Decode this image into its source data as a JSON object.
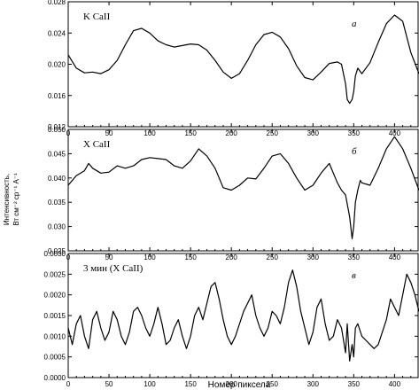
{
  "figure": {
    "ylabel": "Интенсивность,",
    "ylabel_units": "Вт см⁻² ср⁻¹ А⁻¹",
    "xlabel": "Номер пиксела"
  },
  "chart_data": [
    {
      "type": "line",
      "title": "K CaII",
      "panel_label": "а",
      "xlim": [
        0,
        430
      ],
      "ylim": [
        0.012,
        0.028
      ],
      "xticks": [
        "0",
        "50",
        "100",
        "150",
        "200",
        "250",
        "300",
        "350",
        "400"
      ],
      "yticks": [
        "0.012",
        "0.016",
        "0.020",
        "0.024",
        "0.028"
      ],
      "x": [
        0,
        10,
        20,
        30,
        40,
        50,
        60,
        70,
        80,
        90,
        100,
        110,
        120,
        130,
        140,
        150,
        160,
        170,
        180,
        190,
        200,
        210,
        220,
        230,
        240,
        250,
        260,
        270,
        280,
        290,
        300,
        310,
        320,
        330,
        335,
        340,
        342,
        345,
        348,
        350,
        352,
        355,
        360,
        370,
        380,
        390,
        400,
        410,
        420,
        430
      ],
      "values": [
        0.0212,
        0.0195,
        0.0189,
        0.019,
        0.0188,
        0.0193,
        0.0205,
        0.0225,
        0.0243,
        0.0246,
        0.024,
        0.023,
        0.0225,
        0.0222,
        0.0224,
        0.0226,
        0.0225,
        0.0218,
        0.0205,
        0.019,
        0.0182,
        0.0188,
        0.0205,
        0.0225,
        0.0238,
        0.0241,
        0.0235,
        0.022,
        0.0198,
        0.0183,
        0.018,
        0.019,
        0.0201,
        0.0203,
        0.02,
        0.0175,
        0.0155,
        0.015,
        0.0155,
        0.0165,
        0.0185,
        0.0195,
        0.0188,
        0.0202,
        0.0228,
        0.0252,
        0.0263,
        0.0255,
        0.0215,
        0.0188
      ]
    },
    {
      "type": "line",
      "title": "X CaII",
      "panel_label": "б",
      "xlim": [
        0,
        430
      ],
      "ylim": [
        0.025,
        0.05
      ],
      "xticks": [
        "0",
        "50",
        "100",
        "150",
        "200",
        "250",
        "300",
        "350",
        "400"
      ],
      "yticks": [
        "0.025",
        "0.030",
        "0.035",
        "0.040",
        "0.045",
        "0.050"
      ],
      "x": [
        0,
        10,
        20,
        25,
        30,
        40,
        50,
        60,
        70,
        80,
        90,
        100,
        110,
        120,
        130,
        140,
        150,
        160,
        170,
        180,
        190,
        200,
        210,
        220,
        230,
        240,
        250,
        260,
        270,
        280,
        290,
        300,
        310,
        320,
        330,
        335,
        340,
        345,
        348,
        350,
        352,
        355,
        358,
        360,
        370,
        380,
        390,
        400,
        410,
        420,
        430
      ],
      "values": [
        0.0385,
        0.0405,
        0.0415,
        0.043,
        0.042,
        0.041,
        0.0412,
        0.0425,
        0.042,
        0.0425,
        0.0438,
        0.0442,
        0.044,
        0.0438,
        0.0425,
        0.042,
        0.0435,
        0.046,
        0.0445,
        0.042,
        0.038,
        0.0375,
        0.0385,
        0.04,
        0.0398,
        0.042,
        0.0445,
        0.045,
        0.043,
        0.04,
        0.0375,
        0.0385,
        0.041,
        0.043,
        0.039,
        0.0375,
        0.0365,
        0.032,
        0.0275,
        0.03,
        0.035,
        0.0375,
        0.0395,
        0.039,
        0.0385,
        0.042,
        0.046,
        0.0485,
        0.046,
        0.042,
        0.0375
      ]
    },
    {
      "type": "line",
      "title": "3 мин (X CaII)",
      "panel_label": "в",
      "xlim": [
        0,
        430
      ],
      "ylim": [
        0.0,
        0.003
      ],
      "xticks": [
        "0",
        "50",
        "100",
        "150",
        "200",
        "250",
        "300",
        "350",
        "400"
      ],
      "yticks": [
        "0.0000",
        "0.0005",
        "0.0010",
        "0.0015",
        "0.0020",
        "0.0025",
        "0.0030"
      ],
      "x": [
        0,
        5,
        10,
        15,
        20,
        25,
        30,
        35,
        40,
        45,
        50,
        55,
        60,
        65,
        70,
        75,
        80,
        85,
        90,
        95,
        100,
        105,
        110,
        115,
        120,
        125,
        130,
        135,
        140,
        145,
        150,
        155,
        160,
        165,
        170,
        175,
        180,
        185,
        190,
        195,
        200,
        205,
        210,
        215,
        220,
        225,
        230,
        235,
        240,
        245,
        250,
        255,
        260,
        265,
        270,
        275,
        280,
        285,
        290,
        295,
        300,
        305,
        310,
        315,
        320,
        325,
        330,
        335,
        340,
        342,
        345,
        348,
        350,
        352,
        355,
        360,
        365,
        370,
        375,
        380,
        385,
        390,
        395,
        400,
        405,
        410,
        415,
        420,
        425,
        430
      ],
      "values": [
        0.0012,
        0.0008,
        0.0013,
        0.0015,
        0.001,
        0.0007,
        0.0014,
        0.0016,
        0.0012,
        0.0009,
        0.0011,
        0.0016,
        0.0014,
        0.001,
        0.0008,
        0.0011,
        0.0016,
        0.0017,
        0.0015,
        0.0012,
        0.001,
        0.0013,
        0.0017,
        0.0013,
        0.0008,
        0.0009,
        0.0012,
        0.0014,
        0.001,
        0.0007,
        0.001,
        0.0015,
        0.0017,
        0.0014,
        0.0018,
        0.0022,
        0.0023,
        0.0019,
        0.0014,
        0.001,
        0.0008,
        0.001,
        0.0013,
        0.0016,
        0.0018,
        0.002,
        0.0015,
        0.0012,
        0.001,
        0.0012,
        0.0016,
        0.0015,
        0.0013,
        0.0017,
        0.0023,
        0.0026,
        0.0022,
        0.0016,
        0.0012,
        0.0008,
        0.0011,
        0.0017,
        0.0019,
        0.0013,
        0.0009,
        0.001,
        0.0014,
        0.0012,
        0.0006,
        0.0013,
        0.0004,
        0.0008,
        0.0005,
        0.0012,
        0.0013,
        0.001,
        0.0009,
        0.0008,
        0.0007,
        0.0008,
        0.0011,
        0.0014,
        0.0019,
        0.0017,
        0.0015,
        0.002,
        0.0025,
        0.0023,
        0.002,
        0.0016
      ]
    }
  ]
}
